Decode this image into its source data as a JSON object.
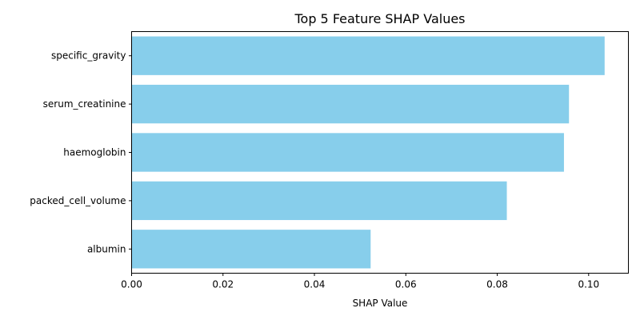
{
  "chart_data": {
    "type": "bar",
    "orientation": "horizontal",
    "title": "Top 5 Feature SHAP Values",
    "xlabel": "SHAP Value",
    "ylabel": "",
    "categories": [
      "specific_gravity",
      "serum_creatinine",
      "haemoglobin",
      "packed_cell_volume",
      "albumin"
    ],
    "values": [
      0.1035,
      0.0957,
      0.0946,
      0.0821,
      0.0523
    ],
    "xlim": [
      0,
      0.1087
    ],
    "xticks": [
      0.0,
      0.02,
      0.04,
      0.06,
      0.08,
      0.1
    ],
    "xtick_labels": [
      "0.00",
      "0.02",
      "0.04",
      "0.06",
      "0.08",
      "0.10"
    ],
    "bar_color": "#87CEEB",
    "grid": false,
    "legend": "none"
  }
}
